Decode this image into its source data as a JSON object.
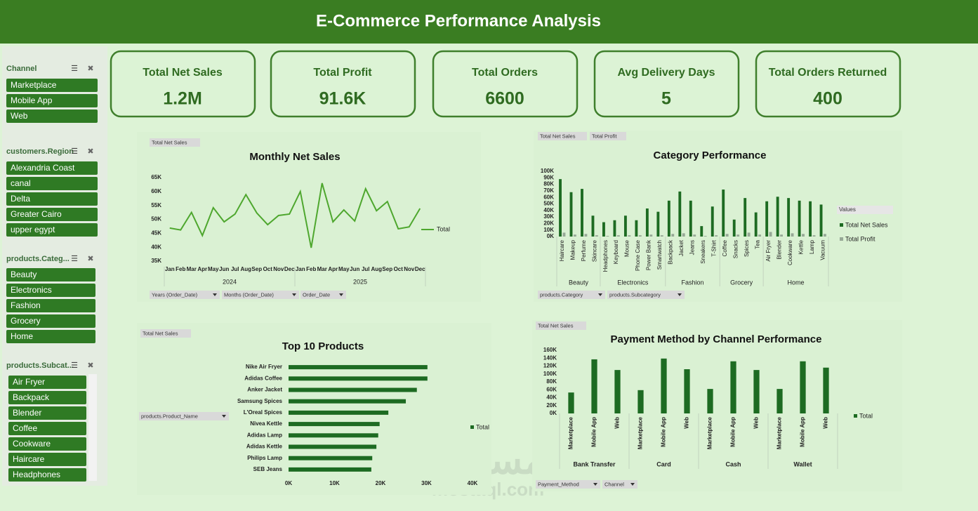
{
  "header": {
    "title": "E-Commerce Performance Analysis"
  },
  "kpis": [
    {
      "label": "Total Net Sales",
      "value": "1.2M"
    },
    {
      "label": "Total Profit",
      "value": "91.6K"
    },
    {
      "label": "Total Orders",
      "value": "6600"
    },
    {
      "label": "Avg Delivery Days",
      "value": "5"
    },
    {
      "label": "Total Orders Returned",
      "value": "400"
    }
  ],
  "slicers": [
    {
      "title": "Channel",
      "items": [
        "Marketplace",
        "Mobile App",
        "Web"
      ]
    },
    {
      "title": "customers.Region",
      "items": [
        "Alexandria Coast",
        "canal",
        "Delta",
        "Greater Cairo",
        "upper egypt"
      ]
    },
    {
      "title": "products.Categ...",
      "items": [
        "Beauty",
        "Electronics",
        "Fashion",
        "Grocery",
        "Home"
      ]
    },
    {
      "title": "products.Subcat...",
      "items": [
        "Air Fryer",
        "Backpack",
        "Blender",
        "Coffee",
        "Cookware",
        "Haircare",
        "Headphones"
      ]
    }
  ],
  "watermark": {
    "arabic": "مستقل",
    "latin": "mostaql.com"
  },
  "chart_data": [
    {
      "type": "line",
      "title": "Monthly Net Sales",
      "field_buttons": [
        "Total Net Sales"
      ],
      "filter_buttons": [
        "Years (Order_Date)",
        "Months (Order_Date)",
        "Order_Date"
      ],
      "groups": [
        {
          "label": "2024",
          "categories": [
            "Jan",
            "Feb",
            "Mar",
            "Apr",
            "May",
            "Jun",
            "Jul",
            "Aug",
            "Sep",
            "Oct",
            "Nov",
            "Dec"
          ]
        },
        {
          "label": "2025",
          "categories": [
            "Jan",
            "Feb",
            "Mar",
            "Apr",
            "May",
            "Jun",
            "Jul",
            "Aug",
            "Sep",
            "Oct",
            "Nov",
            "Dec"
          ]
        }
      ],
      "series": [
        {
          "name": "Total",
          "color": "#4ea72e",
          "values": [
            46900,
            46200,
            52500,
            44200,
            54200,
            49100,
            51900,
            58900,
            52300,
            48100,
            51400,
            51900,
            60000,
            39800,
            63000,
            49100,
            53400,
            49400,
            61000,
            53100,
            56400,
            46600,
            47300,
            53900
          ]
        }
      ],
      "ylim": [
        33000,
        65000
      ],
      "yticks": [
        {
          "value": 35000,
          "label": "35K"
        },
        {
          "value": 40000,
          "label": "40K"
        },
        {
          "value": 45000,
          "label": "45K"
        },
        {
          "value": 50000,
          "label": "50K"
        },
        {
          "value": 55000,
          "label": "55K"
        },
        {
          "value": 60000,
          "label": "60K"
        },
        {
          "value": 65000,
          "label": "65K"
        }
      ]
    },
    {
      "type": "bar",
      "title": "Category Performance",
      "field_buttons": [
        "Total Net Sales",
        "Total Profit"
      ],
      "filter_buttons": [
        "products.Category",
        "products.Subcategory"
      ],
      "legend_title": "Values",
      "groups": [
        {
          "label": "Beauty",
          "categories": [
            "Haircare",
            "Makeup",
            "Perfume",
            "Skincare"
          ]
        },
        {
          "label": "Electronics",
          "categories": [
            "Headphones",
            "Keyboard",
            "Mouse",
            "Phone Case",
            "Power Bank",
            "Smartwatch"
          ]
        },
        {
          "label": "Fashion",
          "categories": [
            "Backpack",
            "Jacket",
            "Jeans",
            "Sneakers",
            "T-Shirt"
          ]
        },
        {
          "label": "Grocery",
          "categories": [
            "Coffee",
            "Snacks",
            "Spices",
            "Tea"
          ]
        },
        {
          "label": "Home",
          "categories": [
            "Air Fryer",
            "Blender",
            "Cookware",
            "Kettle",
            "Lamp",
            "Vacuum"
          ]
        }
      ],
      "series": [
        {
          "name": "Total Net Sales",
          "color": "#1d6b22",
          "values": [
            88000,
            68000,
            73000,
            32000,
            22000,
            25000,
            32000,
            25000,
            43000,
            38000,
            55000,
            69000,
            55000,
            16000,
            46000,
            72000,
            26000,
            59000,
            37000,
            54000,
            61000,
            59000,
            55000,
            54000,
            49000
          ]
        },
        {
          "name": "Total Profit",
          "color": "#96a896",
          "values": [
            6000,
            3000,
            4000,
            2000,
            1000,
            2000,
            2000,
            2000,
            3000,
            2000,
            4000,
            5000,
            3000,
            1000,
            2000,
            4000,
            3000,
            6000,
            3000,
            7000,
            3000,
            5000,
            4000,
            2000,
            4000
          ]
        }
      ],
      "ylim": [
        0,
        100000
      ],
      "yticks": [
        {
          "value": 0,
          "label": "0K"
        },
        {
          "value": 10000,
          "label": "10K"
        },
        {
          "value": 20000,
          "label": "20K"
        },
        {
          "value": 30000,
          "label": "30K"
        },
        {
          "value": 40000,
          "label": "40K"
        },
        {
          "value": 50000,
          "label": "50K"
        },
        {
          "value": 60000,
          "label": "60K"
        },
        {
          "value": 70000,
          "label": "70K"
        },
        {
          "value": 80000,
          "label": "80K"
        },
        {
          "value": 90000,
          "label": "90K"
        },
        {
          "value": 100000,
          "label": "100K"
        }
      ]
    },
    {
      "type": "barh",
      "title": "Top 10 Products",
      "field_buttons": [
        "Total Net Sales"
      ],
      "filter_buttons": [
        "products.Product_Name"
      ],
      "categories": [
        "Nike Air Fryer",
        "Adidas Coffee",
        "Anker Jacket",
        "Samsung Spices",
        "L'Oreal Spices",
        "Nivea Kettle",
        "Adidas Lamp",
        "Adidas Kettle",
        "Philips Lamp",
        "SEB Jeans"
      ],
      "series": [
        {
          "name": "Total",
          "color": "#1d6b22",
          "values": [
            30200,
            30200,
            27900,
            25500,
            21700,
            19800,
            19500,
            19100,
            18200,
            18000
          ]
        }
      ],
      "xlim": [
        0,
        40000
      ],
      "xticks": [
        {
          "value": 0,
          "label": "0K"
        },
        {
          "value": 10000,
          "label": "10K"
        },
        {
          "value": 20000,
          "label": "20K"
        },
        {
          "value": 30000,
          "label": "30K"
        },
        {
          "value": 40000,
          "label": "40K"
        }
      ]
    },
    {
      "type": "bar",
      "title": "Payment Method by Channel Performance",
      "field_buttons": [
        "Total Net Sales"
      ],
      "filter_buttons": [
        "Payment_Method",
        "Channel"
      ],
      "groups": [
        {
          "label": "Bank Transfer",
          "categories": [
            "Marketplace",
            "Mobile App",
            "Web"
          ]
        },
        {
          "label": "Card",
          "categories": [
            "Marketplace",
            "Mobile App",
            "Web"
          ]
        },
        {
          "label": "Cash",
          "categories": [
            "Marketplace",
            "Mobile App",
            "Web"
          ]
        },
        {
          "label": "Wallet",
          "categories": [
            "Marketplace",
            "Mobile App",
            "Web"
          ]
        }
      ],
      "series": [
        {
          "name": "Total",
          "color": "#1d6b22",
          "values": [
            53000,
            137000,
            110000,
            59000,
            139000,
            112000,
            62000,
            132000,
            110000,
            62000,
            132000,
            116000
          ]
        }
      ],
      "ylim": [
        0,
        160000
      ],
      "yticks": [
        {
          "value": 0,
          "label": "0K"
        },
        {
          "value": 20000,
          "label": "20K"
        },
        {
          "value": 40000,
          "label": "40K"
        },
        {
          "value": 60000,
          "label": "60K"
        },
        {
          "value": 80000,
          "label": "80K"
        },
        {
          "value": 100000,
          "label": "100K"
        },
        {
          "value": 120000,
          "label": "120K"
        },
        {
          "value": 140000,
          "label": "140K"
        },
        {
          "value": 160000,
          "label": "160K"
        }
      ]
    }
  ]
}
